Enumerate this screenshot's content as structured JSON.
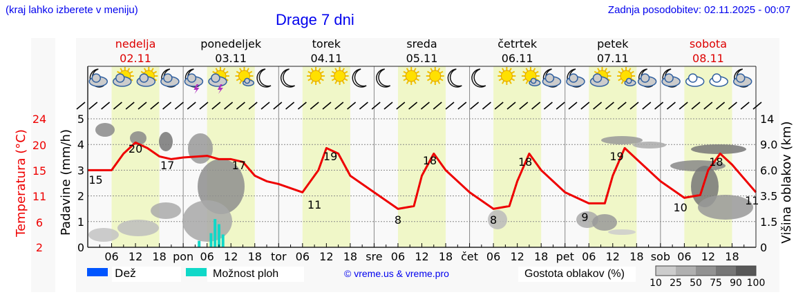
{
  "header": {
    "note": "(kraj lahko izberete v meniju)",
    "title": "Drage 7 dni",
    "last_update": "Zadnja posodobitev: 02.11.2025 - 00:07"
  },
  "days": [
    {
      "name": "nedelja",
      "date": "02.11",
      "weekend": true
    },
    {
      "name": "ponedeljek",
      "date": "03.11",
      "weekend": false
    },
    {
      "name": "torek",
      "date": "04.11",
      "weekend": false
    },
    {
      "name": "sreda",
      "date": "05.11",
      "weekend": false
    },
    {
      "name": "četrtek",
      "date": "06.11",
      "weekend": false
    },
    {
      "name": "petek",
      "date": "07.11",
      "weekend": false
    },
    {
      "name": "sobota",
      "date": "08.11",
      "weekend": true
    }
  ],
  "weather_icons": [
    "moon-cloud",
    "sun-cloud",
    "sun-cloud",
    "moon-cloud",
    "moon-cloud-thunder",
    "sun-cloud-thunder",
    "sun-small-cloud",
    "moon",
    "moon",
    "sun",
    "sun",
    "moon",
    "moon",
    "sun",
    "sun",
    "moon",
    "moon",
    "sun",
    "sun-small-cloud",
    "moon-cloud",
    "moon-cloud",
    "sun-cloud",
    "sun-small-cloud",
    "moon-cloud",
    "moon-cloud",
    "clouds",
    "clouds",
    "moon-cloud"
  ],
  "x_axis": {
    "ticks": [
      "06",
      "12",
      "18",
      "pon",
      "06",
      "12",
      "18",
      "tor",
      "06",
      "12",
      "18",
      "sre",
      "06",
      "12",
      "18",
      "čet",
      "06",
      "12",
      "18",
      "pet",
      "06",
      "12",
      "18",
      "sob",
      "06",
      "12",
      "18"
    ]
  },
  "legend": {
    "rain": "Dež",
    "rain_color": "#0055ff",
    "showers": "Možnost ploh",
    "showers_color": "#10d8c8",
    "copyright": "© vreme.us & vreme.pro",
    "cloud_density_label": "Gostota oblakov (%)",
    "cloud_density_ticks": [
      "10",
      "25",
      "50",
      "75",
      "90",
      "100"
    ],
    "cloud_density_colors": [
      "#cccccc",
      "#b0b0b0",
      "#929292",
      "#767676",
      "#585858"
    ]
  },
  "colors": {
    "temperature": "#ee0000",
    "weekend": "#dd0000",
    "daytime_shade": "#f0f7c8",
    "header_text": "#0000ee"
  },
  "chart_data": {
    "type": "line",
    "title": "Drage 7 dni",
    "xlabel": "",
    "axes": {
      "left_temperature": {
        "label": "Temperatura (°C)",
        "ticks": [
          "2",
          "6",
          "11",
          "15",
          "20",
          "24"
        ]
      },
      "left_precip": {
        "label": "Padavine (mm/h)",
        "ticks": [
          "0",
          "1",
          "2",
          "3",
          "4",
          "5"
        ],
        "ylim": [
          0,
          5.5
        ]
      },
      "right_cloud_height": {
        "label": "Višina oblakov (km)",
        "ticks": [
          "0",
          "1.5",
          "3.5",
          "6.0",
          "9.0",
          "14"
        ]
      }
    },
    "grid": true,
    "series": [
      {
        "name": "Temperatura (°C)",
        "color": "#ee0000",
        "x_hours": [
          0,
          6,
          9,
          12,
          15,
          18,
          21,
          24,
          30,
          33,
          36,
          39,
          42,
          45,
          48,
          54,
          58,
          60,
          63,
          66,
          72,
          78,
          82,
          84,
          87,
          90,
          96,
          102,
          106,
          108,
          111,
          114,
          120,
          126,
          130,
          132,
          135,
          138,
          144,
          150,
          154,
          156,
          159,
          162,
          168
        ],
        "values": [
          15,
          15,
          18,
          20,
          19,
          17.5,
          17,
          17.3,
          17.6,
          17,
          17,
          16.5,
          14,
          13,
          12.5,
          11,
          15,
          19,
          18,
          14,
          11,
          8,
          8.5,
          14,
          18,
          15,
          11,
          8,
          8.5,
          13,
          18,
          15,
          11,
          9,
          9,
          14,
          19,
          17,
          13,
          10,
          10.5,
          15,
          18,
          16,
          11
        ],
        "labels": [
          {
            "text": "15",
            "hour": 2
          },
          {
            "text": "20",
            "hour": 12
          },
          {
            "text": "17",
            "hour": 20
          },
          {
            "text": "17",
            "hour": 38
          },
          {
            "text": "11",
            "hour": 57
          },
          {
            "text": "19",
            "hour": 61
          },
          {
            "text": "8",
            "hour": 78
          },
          {
            "text": "18",
            "hour": 86
          },
          {
            "text": "8",
            "hour": 102
          },
          {
            "text": "18",
            "hour": 110
          },
          {
            "text": "9",
            "hour": 125
          },
          {
            "text": "19",
            "hour": 133
          },
          {
            "text": "10",
            "hour": 149
          },
          {
            "text": "18",
            "hour": 158
          },
          {
            "text": "11",
            "hour": 167
          }
        ]
      },
      {
        "name": "Možnost ploh (mm/h)",
        "color": "#10d8c8",
        "x_hours": [
          28,
          31,
          32,
          33,
          34,
          35
        ],
        "values": [
          0.25,
          0.55,
          1.1,
          0.9,
          0.5,
          0
        ]
      },
      {
        "name": "Dež (mm/h)",
        "color": "#0055ff",
        "x_hours": [],
        "values": []
      }
    ]
  }
}
